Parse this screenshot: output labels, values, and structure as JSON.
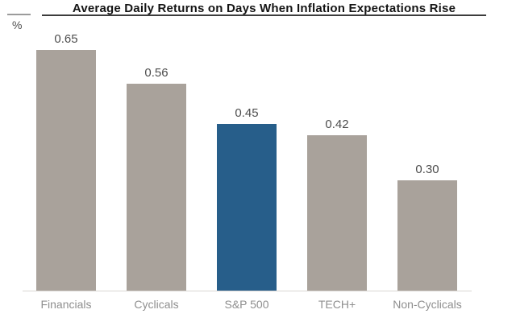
{
  "colors": {
    "bar_default": "#a9a29b",
    "bar_highlight": "#275e8a",
    "title_text": "#141414",
    "title_rule": "#3c3c3c",
    "unit_rule": "#9b9b9b",
    "value_label": "#4d4d4d",
    "category_label": "#8f8f8f",
    "baseline": "#d9d6d2",
    "background": "#ffffff"
  },
  "chart_data": {
    "type": "bar",
    "title": "Average Daily Returns on Days When Inflation Expectations Rise",
    "ylabel": "%",
    "xlabel": "",
    "categories": [
      "Financials",
      "Cyclicals",
      "S&P 500",
      "TECH+",
      "Non-Cyclicals"
    ],
    "values": [
      0.65,
      0.56,
      0.45,
      0.42,
      0.3
    ],
    "value_labels": [
      "0.65",
      "0.56",
      "0.45",
      "0.42",
      "0.30"
    ],
    "highlight_index": 2,
    "ylim": [
      0,
      0.7
    ],
    "grid": false,
    "legend": null,
    "y_axis_ticks_visible": false,
    "value_labels_position": "above-bar"
  }
}
